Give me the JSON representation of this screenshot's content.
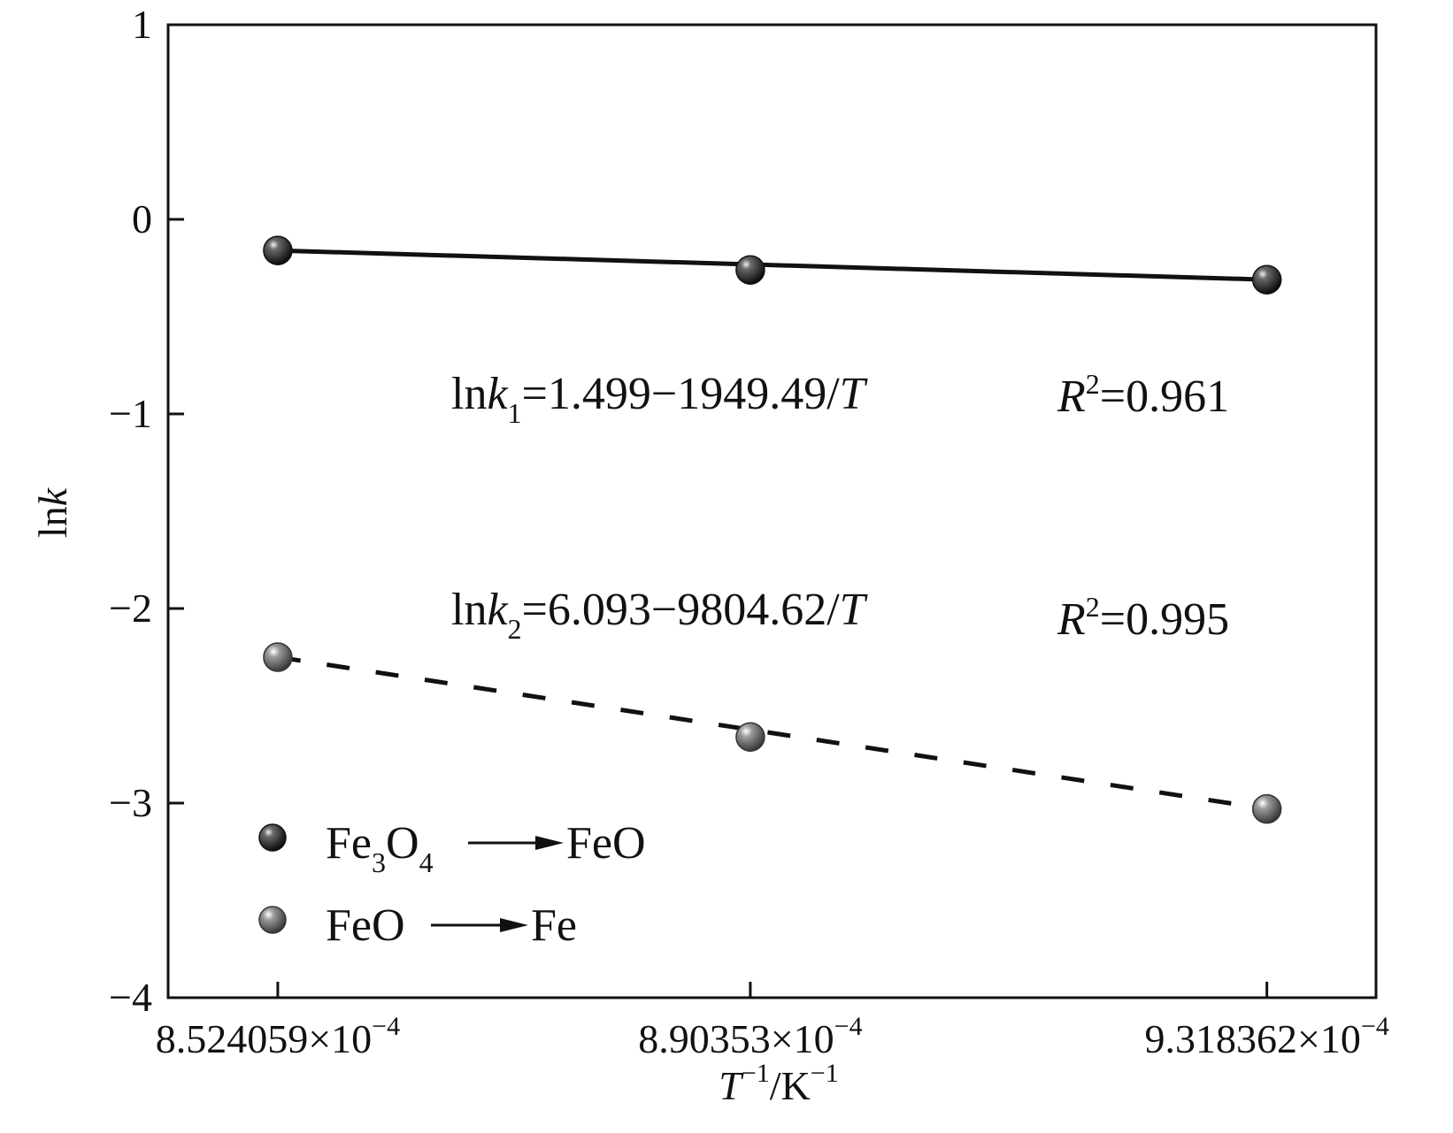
{
  "chart_data": {
    "type": "scatter",
    "xlabel": {
      "base": "T",
      "sup1": "−1",
      "mid": "/K",
      "sup2": "−1"
    },
    "ylabel": {
      "pre": "ln",
      "var": "k"
    },
    "xlim": [
      0.0008436,
      0.0009406
    ],
    "ylim": [
      -4,
      1
    ],
    "x_ticks": [
      {
        "value": 0.0008524059,
        "mantissa": "8.524059×10",
        "exp": "−4"
      },
      {
        "value": 0.000890353,
        "mantissa": "8.90353×10",
        "exp": "−4"
      },
      {
        "value": 0.0009318362,
        "mantissa": "9.318362×10",
        "exp": "−4"
      }
    ],
    "y_ticks": [
      {
        "value": 1,
        "label": "1"
      },
      {
        "value": 0,
        "label": "0"
      },
      {
        "value": -1,
        "label": "−1"
      },
      {
        "value": -2,
        "label": "−2"
      },
      {
        "value": -3,
        "label": "−3"
      },
      {
        "value": -4,
        "label": "−4"
      }
    ],
    "series": [
      {
        "name": "Fe3O4→FeO",
        "legend": {
          "a": "Fe",
          "sub1": "3",
          "b": "O",
          "sub2": "4",
          "product": "FeO"
        },
        "x": [
          0.0008524059,
          0.000890353,
          0.0009318362
        ],
        "y": [
          -0.16,
          -0.26,
          -0.31
        ],
        "line": "solid",
        "fit_y": [
          -0.16,
          -0.31
        ],
        "marker_color": "#1a1a1a",
        "equation": {
          "lhs": "ln",
          "var": "k",
          "sub": "1",
          "rhs": "=1.499−1949.49/",
          "T": "T"
        },
        "r2": {
          "R": "R",
          "sup": "2",
          "value": "=0.961"
        }
      },
      {
        "name": "FeO→Fe",
        "legend": {
          "a": "FeO",
          "sub1": "",
          "b": "",
          "sub2": "",
          "product": "Fe"
        },
        "x": [
          0.0008524059,
          0.000890353,
          0.0009318362
        ],
        "y": [
          -2.25,
          -2.66,
          -3.03
        ],
        "line": "dashed",
        "fit_y": [
          -2.25,
          -3.03
        ],
        "marker_color": "#6a6a6a",
        "equation": {
          "lhs": "ln",
          "var": "k",
          "sub": "2",
          "rhs": "=6.093−9804.62/",
          "T": "T"
        },
        "r2": {
          "R": "R",
          "sup": "2",
          "value": "=0.995"
        }
      }
    ],
    "grid": false,
    "legend_position": "bottom-left"
  }
}
